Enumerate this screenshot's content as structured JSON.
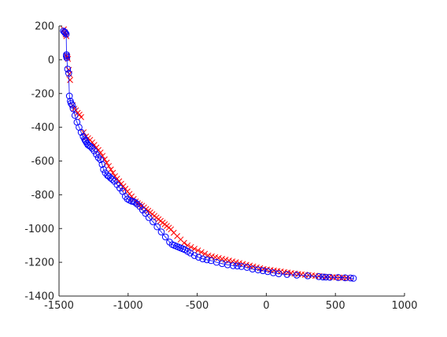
{
  "chart_data": {
    "type": "scatter",
    "title": "",
    "xlabel": "",
    "ylabel": "",
    "xlim": [
      -1500,
      1000
    ],
    "ylim": [
      -1400,
      200
    ],
    "x_ticks": [
      -1500,
      -1000,
      -500,
      0,
      500,
      1000
    ],
    "y_ticks": [
      200,
      0,
      -200,
      -400,
      -600,
      -800,
      -1000,
      -1200,
      -1400
    ],
    "x_tick_labels": [
      "-1500",
      "-1000",
      "-500",
      "0",
      "500",
      "1000"
    ],
    "y_tick_labels": [
      "200",
      "0",
      "-200",
      "-400",
      "-600",
      "-800",
      "-1000",
      "-1200",
      "-1400"
    ],
    "grid": false,
    "legend": "none",
    "series": [
      {
        "marker": "o",
        "color": "#0000ff",
        "connected": true,
        "x": [
          -1468,
          -1460,
          -1455,
          -1448,
          -1446,
          -1447,
          -1444,
          -1438,
          -1430,
          -1425,
          -1418,
          -1413,
          -1405,
          -1398,
          -1385,
          -1370,
          -1355,
          -1340,
          -1325,
          -1315,
          -1310,
          -1305,
          -1298,
          -1290,
          -1280,
          -1270,
          -1260,
          -1245,
          -1230,
          -1215,
          -1200,
          -1188,
          -1178,
          -1165,
          -1150,
          -1140,
          -1128,
          -1115,
          -1100,
          -1080,
          -1060,
          -1040,
          -1020,
          -1005,
          -990,
          -975,
          -962,
          -950,
          -935,
          -915,
          -895,
          -875,
          -850,
          -820,
          -790,
          -760,
          -730,
          -700,
          -680,
          -665,
          -650,
          -635,
          -620,
          -605,
          -590,
          -570,
          -550,
          -520,
          -490,
          -460,
          -430,
          -400,
          -360,
          -320,
          -280,
          -240,
          -210,
          -180,
          -140,
          -100,
          -60,
          -25,
          10,
          50,
          90,
          150,
          220,
          300,
          380,
          410,
          430,
          460,
          520,
          570,
          610,
          630
        ],
        "y": [
          170,
          165,
          160,
          152,
          30,
          22,
          12,
          -55,
          -80,
          -215,
          -245,
          -258,
          -268,
          -290,
          -330,
          -370,
          -400,
          -430,
          -455,
          -470,
          -478,
          -485,
          -495,
          -505,
          -510,
          -515,
          -525,
          -540,
          -560,
          -580,
          -592,
          -620,
          -650,
          -670,
          -685,
          -690,
          -700,
          -708,
          -720,
          -740,
          -760,
          -780,
          -810,
          -825,
          -832,
          -838,
          -840,
          -845,
          -855,
          -870,
          -890,
          -910,
          -935,
          -960,
          -990,
          -1020,
          -1050,
          -1080,
          -1095,
          -1100,
          -1105,
          -1110,
          -1115,
          -1120,
          -1125,
          -1135,
          -1145,
          -1160,
          -1170,
          -1180,
          -1185,
          -1190,
          -1200,
          -1208,
          -1215,
          -1220,
          -1222,
          -1225,
          -1230,
          -1240,
          -1245,
          -1250,
          -1255,
          -1262,
          -1268,
          -1272,
          -1276,
          -1280,
          -1285,
          -1287,
          -1288,
          -1289,
          -1290,
          -1292,
          -1293,
          -1295
        ]
      },
      {
        "marker": "x",
        "color": "#ff0000",
        "connected": false,
        "x": [
          -1465,
          -1458,
          -1452,
          -1447,
          -1445,
          -1440,
          -1435,
          -1430,
          -1425,
          -1420,
          -1402,
          -1390,
          -1378,
          -1365,
          -1352,
          -1340,
          -1322,
          -1305,
          -1290,
          -1275,
          -1260,
          -1245,
          -1230,
          -1215,
          -1200,
          -1185,
          -1170,
          -1155,
          -1140,
          -1125,
          -1110,
          -1095,
          -1080,
          -1065,
          -1050,
          -1035,
          -1020,
          -1005,
          -990,
          -975,
          -960,
          -945,
          -930,
          -915,
          -900,
          -885,
          -870,
          -855,
          -840,
          -825,
          -810,
          -795,
          -780,
          -765,
          -750,
          -735,
          -720,
          -705,
          -690,
          -670,
          -645,
          -620,
          -595,
          -570,
          -545,
          -520,
          -495,
          -470,
          -445,
          -420,
          -395,
          -370,
          -345,
          -320,
          -295,
          -270,
          -245,
          -220,
          -195,
          -170,
          -145,
          -120,
          -95,
          -70,
          -45,
          -20,
          5,
          30,
          55,
          80,
          105,
          130,
          155,
          180,
          205,
          230,
          255,
          280,
          305,
          330,
          355,
          380,
          405,
          430,
          455,
          480,
          505,
          530,
          555,
          580,
          605
        ],
        "y": [
          180,
          162,
          150,
          140,
          25,
          15,
          5,
          -60,
          -85,
          -120,
          -270,
          -290,
          -300,
          -315,
          -325,
          -340,
          -430,
          -455,
          -465,
          -475,
          -490,
          -505,
          -520,
          -535,
          -550,
          -570,
          -590,
          -610,
          -630,
          -650,
          -670,
          -690,
          -705,
          -720,
          -735,
          -750,
          -765,
          -780,
          -795,
          -810,
          -825,
          -840,
          -850,
          -858,
          -865,
          -875,
          -885,
          -895,
          -905,
          -915,
          -925,
          -935,
          -945,
          -955,
          -965,
          -975,
          -985,
          -995,
          -1005,
          -1025,
          -1045,
          -1065,
          -1085,
          -1100,
          -1110,
          -1120,
          -1130,
          -1140,
          -1150,
          -1160,
          -1165,
          -1170,
          -1175,
          -1180,
          -1185,
          -1190,
          -1195,
          -1200,
          -1205,
          -1210,
          -1215,
          -1220,
          -1225,
          -1230,
          -1235,
          -1240,
          -1243,
          -1246,
          -1249,
          -1252,
          -1255,
          -1258,
          -1261,
          -1264,
          -1267,
          -1270,
          -1272,
          -1274,
          -1276,
          -1278,
          -1280,
          -1282,
          -1284,
          -1286,
          -1287,
          -1288,
          -1289,
          -1290,
          -1291,
          -1292,
          -1293
        ]
      }
    ]
  }
}
